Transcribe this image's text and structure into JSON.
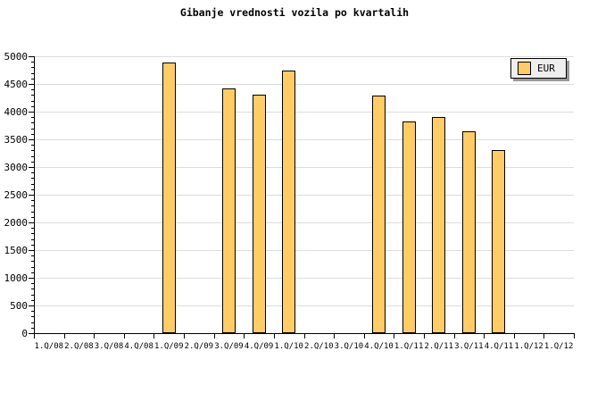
{
  "title": "Gibanje vrednosti vozila po kvartalih",
  "legend": {
    "label": "EUR",
    "swatch_color": "#FFCC66"
  },
  "colors": {
    "background": "#FFFFFF",
    "bar_fill": "#FFCC66",
    "bar_border": "#000000",
    "gridline": "#DCDCDC",
    "axis": "#000000",
    "legend_bg": "#EEEEEE",
    "legend_shadow": "#999999",
    "text": "#000000"
  },
  "chart_data": {
    "type": "bar",
    "title": "Gibanje vrednosti vozila po kvartalih",
    "xlabel": "",
    "ylabel": "",
    "ylim": [
      0,
      5000
    ],
    "ytick_major": 500,
    "ytick_minor": 100,
    "grid": "horizontal-major",
    "legend_position": "top-right",
    "categories": [
      "1.Q/08",
      "2.Q/08",
      "3.Q/08",
      "4.Q/08",
      "1.Q/09",
      "2.Q/09",
      "3.Q/09",
      "4.Q/09",
      "1.Q/10",
      "2.Q/10",
      "3.Q/10",
      "4.Q/10",
      "1.Q/11",
      "2.Q/11",
      "3.Q/11",
      "4.Q/11",
      "1.Q/12",
      "1.Q/12"
    ],
    "series": [
      {
        "name": "EUR",
        "values": [
          null,
          null,
          null,
          null,
          4880,
          null,
          4420,
          4300,
          4750,
          null,
          null,
          4290,
          3820,
          3910,
          3640,
          3300,
          null,
          null
        ]
      }
    ],
    "ytick_labels": [
      "0",
      "500",
      "1000",
      "1500",
      "2000",
      "2500",
      "3000",
      "3500",
      "4000",
      "4500",
      "5000"
    ]
  }
}
